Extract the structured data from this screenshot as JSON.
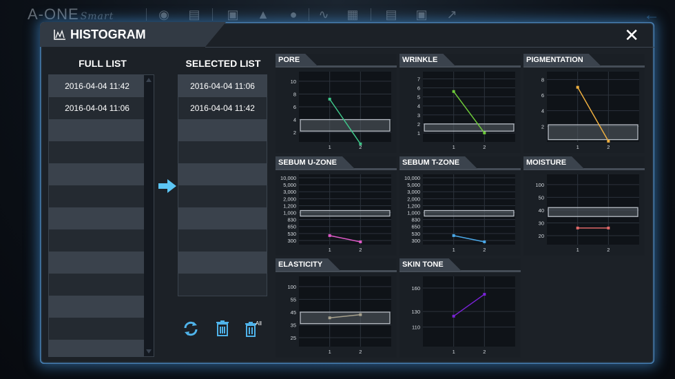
{
  "app": {
    "brand": "A-ONE",
    "brand_sub": "Smart",
    "toolbar_icons": [
      "camera-icon",
      "clipboard-icon",
      "portrait-icon",
      "cube-3d-icon",
      "face-icon",
      "chart-icon",
      "document-icon",
      "printer-icon",
      "save-icon",
      "export-icon"
    ],
    "back_icon": "back-arrow-icon"
  },
  "dialog": {
    "title": "HISTOGRAM",
    "close_label": "✕"
  },
  "full_list": {
    "title": "FULL LIST",
    "items": [
      "2016-04-04 11:42",
      "2016-04-04 11:06",
      "",
      "",
      "",
      "",
      "",
      "",
      "",
      "",
      "",
      "",
      ""
    ]
  },
  "selected_list": {
    "title": "SELECTED LIST",
    "items": [
      "2016-04-04 11:06",
      "2016-04-04 11:42",
      "",
      "",
      "",
      "",
      "",
      "",
      "",
      ""
    ]
  },
  "actions": {
    "refresh_icon": "refresh-icon",
    "delete_icon": "trash-icon",
    "delete_all_icon": "trash-all-icon",
    "delete_all_label": "All"
  },
  "chart_data": [
    {
      "id": "pore",
      "type": "line",
      "title": "PORE",
      "x": [
        1,
        2
      ],
      "categories": [
        "1",
        "2"
      ],
      "ticks": [
        "10",
        "8",
        "6",
        "4",
        "2"
      ],
      "tick_values": [
        10,
        8,
        6,
        4,
        2
      ],
      "ylim": [
        0.5,
        11.5
      ],
      "values": [
        7.2,
        0.2
      ],
      "color": "#3fc68a",
      "normal_range": [
        2.2,
        4.0
      ]
    },
    {
      "id": "wrinkle",
      "type": "line",
      "title": "WRINKLE",
      "x": [
        1,
        2
      ],
      "categories": [
        "1",
        "2"
      ],
      "ticks": [
        "7",
        "6",
        "5",
        "4",
        "3",
        "2",
        "1"
      ],
      "tick_values": [
        7,
        6,
        5,
        4,
        3,
        2,
        1
      ],
      "ylim": [
        0,
        7.8
      ],
      "values": [
        5.6,
        1.0
      ],
      "color": "#6ecb3a",
      "normal_range": [
        1.2,
        2.0
      ]
    },
    {
      "id": "pigmentation",
      "type": "line",
      "title": "PIGMENTATION",
      "x": [
        1,
        2
      ],
      "categories": [
        "1",
        "2"
      ],
      "ticks": [
        "8",
        "6",
        "4",
        "2"
      ],
      "tick_values": [
        8,
        6,
        4,
        2
      ],
      "ylim": [
        0,
        9
      ],
      "values": [
        7.0,
        0.1
      ],
      "color": "#f0b040",
      "normal_range": [
        0.3,
        2.2
      ]
    },
    {
      "id": "sebum-u-zone",
      "type": "line",
      "title": "SEBUM U-ZONE",
      "x": [
        1,
        2
      ],
      "categories": [
        "1",
        "2"
      ],
      "ticks": [
        "10,000",
        "5,000",
        "3,000",
        "2,000",
        "1,200",
        "1,000",
        "830",
        "650",
        "530",
        "300"
      ],
      "tick_values": [
        9,
        8,
        7,
        6,
        5,
        4,
        3,
        2,
        1,
        0
      ],
      "ylim": [
        -0.6,
        9.5
      ],
      "values": [
        0.7,
        -0.2
      ],
      "color": "#e05ac8",
      "normal_range": [
        3.5,
        4.3
      ]
    },
    {
      "id": "sebum-t-zone",
      "type": "line",
      "title": "SEBUM T-ZONE",
      "x": [
        1,
        2
      ],
      "categories": [
        "1",
        "2"
      ],
      "ticks": [
        "10,000",
        "5,000",
        "3,000",
        "2,000",
        "1,200",
        "1,000",
        "830",
        "650",
        "530",
        "300"
      ],
      "tick_values": [
        9,
        8,
        7,
        6,
        5,
        4,
        3,
        2,
        1,
        0
      ],
      "ylim": [
        -0.6,
        9.5
      ],
      "values": [
        0.7,
        -0.2
      ],
      "color": "#4aa8e8",
      "normal_range": [
        3.5,
        4.3
      ]
    },
    {
      "id": "moisture",
      "type": "line",
      "title": "MOISTURE",
      "x": [
        1,
        2
      ],
      "categories": [
        "1",
        "2"
      ],
      "ticks": [
        "100",
        "50",
        "40",
        "30",
        "20"
      ],
      "tick_values": [
        4,
        3,
        2,
        1,
        0
      ],
      "ylim": [
        -0.7,
        4.8
      ],
      "values": [
        0.6,
        0.6
      ],
      "color": "#e06868",
      "normal_range": [
        1.5,
        2.2
      ]
    },
    {
      "id": "elasticity",
      "type": "line",
      "title": "ELASTICITY",
      "x": [
        1,
        2
      ],
      "categories": [
        "1",
        "2"
      ],
      "ticks": [
        "100",
        "55",
        "45",
        "35",
        "25"
      ],
      "tick_values": [
        4,
        3,
        2,
        1,
        0
      ],
      "ylim": [
        -0.7,
        4.8
      ],
      "values": [
        1.55,
        1.8
      ],
      "color": "#a8a28e",
      "normal_range": [
        1.1,
        2.0
      ]
    },
    {
      "id": "skin-tone",
      "type": "line",
      "title": "SKIN TONE",
      "x": [
        1,
        2
      ],
      "categories": [
        "1",
        "2"
      ],
      "ticks": [
        "160",
        "130",
        "110"
      ],
      "tick_values": [
        160,
        130,
        110
      ],
      "ylim": [
        85,
        175
      ],
      "values": [
        124,
        152
      ],
      "color": "#7a22d8",
      "normal_range": null
    }
  ]
}
